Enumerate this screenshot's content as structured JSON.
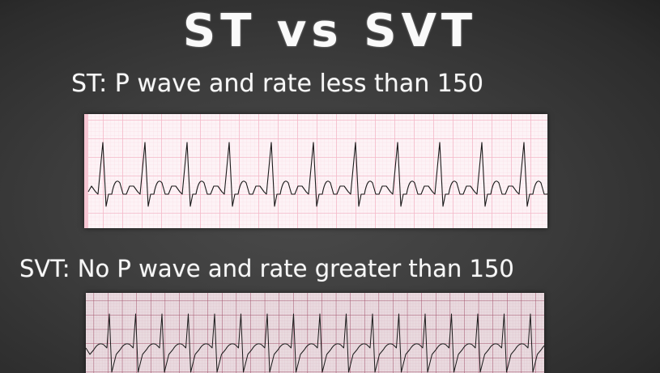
{
  "slide": {
    "title": "ST vs SVT",
    "st_caption": "ST: P wave and rate less than 150",
    "svt_caption": "SVT: No P wave and rate greater than 150"
  },
  "ecg_strips": [
    {
      "id": "st",
      "rhythm": "Sinus Tachycardia",
      "p_waves_visible": true,
      "beats_visible": 11,
      "paper_color": "#fdf3f6",
      "grid_color": "#f4b8c8"
    },
    {
      "id": "svt",
      "rhythm": "Supraventricular Tachycardia",
      "p_waves_visible": false,
      "beats_visible": 17,
      "paper_color": "#e9dadf",
      "grid_color": "#a0506a"
    }
  ],
  "colors": {
    "background": "#3d3d3d",
    "text": "#fafafa",
    "trace": "#1a1a1a"
  }
}
